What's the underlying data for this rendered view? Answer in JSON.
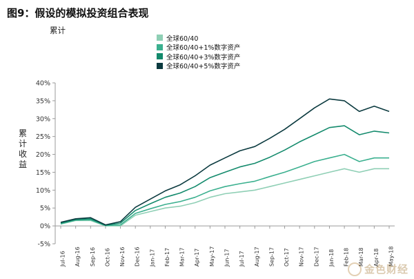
{
  "header": {
    "title": "图9：假设的模拟投资组合表现",
    "subtitle": "累计"
  },
  "watermark": {
    "text": "金色财经"
  },
  "chart_data": {
    "type": "line",
    "ylabel": "累计收益",
    "xlabel": "",
    "ylim": [
      -0.05,
      0.4
    ],
    "yticks": [
      -0.05,
      0.0,
      0.05,
      0.1,
      0.15,
      0.2,
      0.25,
      0.3,
      0.35,
      0.4
    ],
    "ytick_labels": [
      "-5%",
      "0%",
      "5%",
      "10%",
      "15%",
      "20%",
      "25%",
      "30%",
      "35%",
      "40%"
    ],
    "xtick_labels": [
      "Jul-16",
      "Aug-16",
      "Sep-16",
      "Oct-16",
      "Nov-16",
      "Dec-16",
      "Jan-17",
      "Feb-17",
      "Mar-17",
      "Apr-17",
      "May-17",
      "Jun-17",
      "Jul-17",
      "Aug-17",
      "Sep-17",
      "Oct-17",
      "Nov-17",
      "Dec-17",
      "Jan-18",
      "Feb-18",
      "Mar-18",
      "Apr-18",
      "May-18"
    ],
    "x": [
      "Jul-16",
      "Aug-16",
      "Sep-16",
      "Oct-16",
      "Nov-16",
      "Dec-16",
      "Jan-17",
      "Feb-17",
      "Mar-17",
      "Apr-17",
      "May-17",
      "Jun-17",
      "Jul-17",
      "Aug-17",
      "Sep-17",
      "Oct-17",
      "Nov-17",
      "Dec-17",
      "Jan-18",
      "Feb-18",
      "Mar-18",
      "Apr-18",
      "May-18"
    ],
    "grid": false,
    "legend_position": "top",
    "series": [
      {
        "name": "全球60/40",
        "color": "#8fcfb5",
        "values": [
          0.005,
          0.015,
          0.015,
          0.0,
          0.0,
          0.03,
          0.04,
          0.05,
          0.055,
          0.065,
          0.08,
          0.09,
          0.095,
          0.1,
          0.11,
          0.12,
          0.13,
          0.14,
          0.15,
          0.16,
          0.15,
          0.16,
          0.16
        ]
      },
      {
        "name": "全球60/40+1%数字资产",
        "color": "#3bb08f",
        "values": [
          0.006,
          0.016,
          0.017,
          0.001,
          0.003,
          0.035,
          0.048,
          0.06,
          0.068,
          0.08,
          0.098,
          0.11,
          0.118,
          0.125,
          0.138,
          0.15,
          0.165,
          0.18,
          0.19,
          0.2,
          0.18,
          0.19,
          0.19
        ]
      },
      {
        "name": "全球60/40+3%数字资产",
        "color": "#138a6c",
        "values": [
          0.008,
          0.018,
          0.02,
          0.002,
          0.008,
          0.043,
          0.062,
          0.08,
          0.092,
          0.11,
          0.135,
          0.15,
          0.165,
          0.175,
          0.192,
          0.212,
          0.235,
          0.255,
          0.275,
          0.28,
          0.255,
          0.265,
          0.26
        ]
      },
      {
        "name": "全球60/40+5%数字资产",
        "color": "#0b3a3f",
        "values": [
          0.01,
          0.02,
          0.023,
          0.003,
          0.012,
          0.052,
          0.075,
          0.098,
          0.115,
          0.14,
          0.17,
          0.19,
          0.21,
          0.222,
          0.245,
          0.27,
          0.3,
          0.33,
          0.355,
          0.35,
          0.32,
          0.335,
          0.32
        ]
      }
    ]
  }
}
